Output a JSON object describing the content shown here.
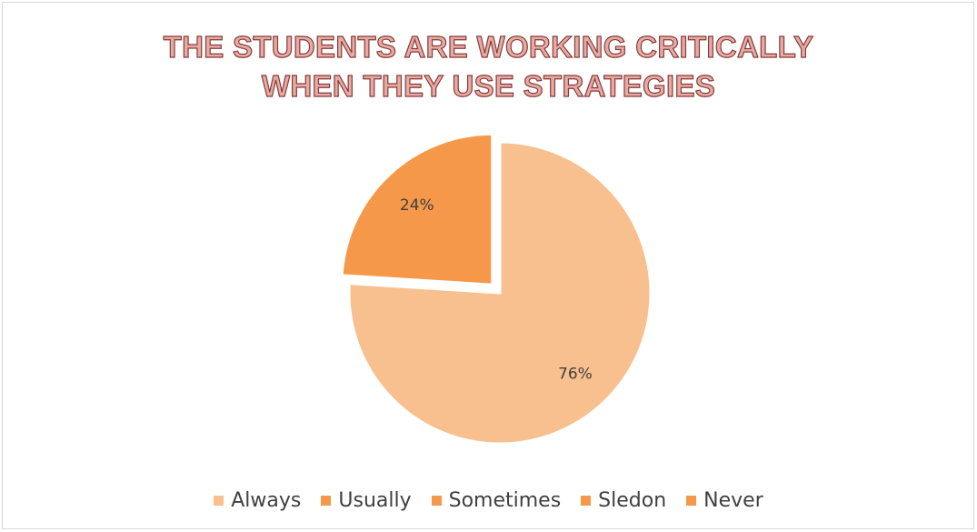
{
  "chart_data": {
    "type": "pie",
    "title": "THE STUDENTS ARE WORKING CRITICALLY WHEN THEY USE STRATEGIES",
    "title_lines": [
      "THE STUDENTS ARE WORKING CRITICALLY",
      "WHEN THEY USE STRATEGIES"
    ],
    "categories": [
      "Always",
      "Usually",
      "Sometimes",
      "Sledon",
      "Never"
    ],
    "values": [
      76,
      24,
      0,
      0,
      0
    ],
    "data_labels": [
      "76%",
      "24%",
      "",
      "",
      ""
    ],
    "colors": [
      "#f8c08f",
      "#f6984a",
      "#f6984a",
      "#f6984a",
      "#f6984a"
    ],
    "exploded_slice": "Usually",
    "legend_position": "bottom"
  }
}
